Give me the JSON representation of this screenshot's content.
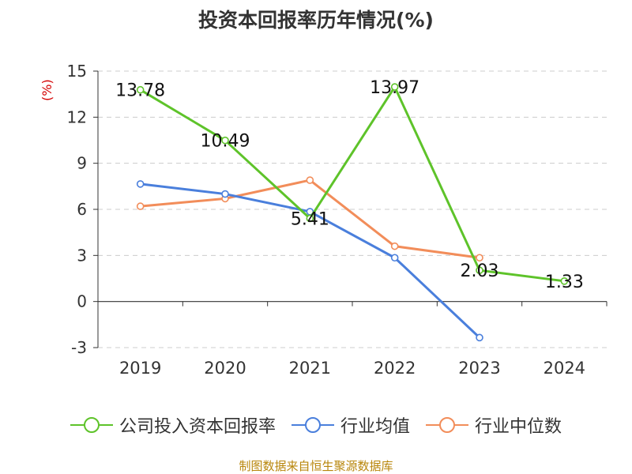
{
  "title": "投资本回报率历年情况(%)",
  "unit_label": "(%)",
  "source": "制图数据来自恒生聚源数据库",
  "colors": {
    "company": "#5ec32a",
    "industry_avg": "#4a7fdc",
    "industry_median": "#f28d5a",
    "grid": "#cccccc",
    "axis": "#333333",
    "unit": "#d40000"
  },
  "chart_data": {
    "type": "line",
    "categories": [
      "2019",
      "2020",
      "2021",
      "2022",
      "2023",
      "2024"
    ],
    "ylim": [
      -3,
      15
    ],
    "yticks": [
      "15",
      "12",
      "9",
      "6",
      "3",
      "0",
      "-3"
    ],
    "grid": true,
    "legend_position": "bottom",
    "series": [
      {
        "name": "公司投入资本回报率",
        "values": [
          13.78,
          10.49,
          5.41,
          13.97,
          2.03,
          1.33
        ],
        "labels": [
          "13.78",
          "10.49",
          "5.41",
          "13.97",
          "2.03",
          "1.33"
        ]
      },
      {
        "name": "行业均值",
        "values": [
          7.65,
          7.0,
          5.85,
          2.85,
          -2.35,
          null
        ]
      },
      {
        "name": "行业中位数",
        "values": [
          6.2,
          6.7,
          7.9,
          3.6,
          2.85,
          null
        ]
      }
    ]
  }
}
